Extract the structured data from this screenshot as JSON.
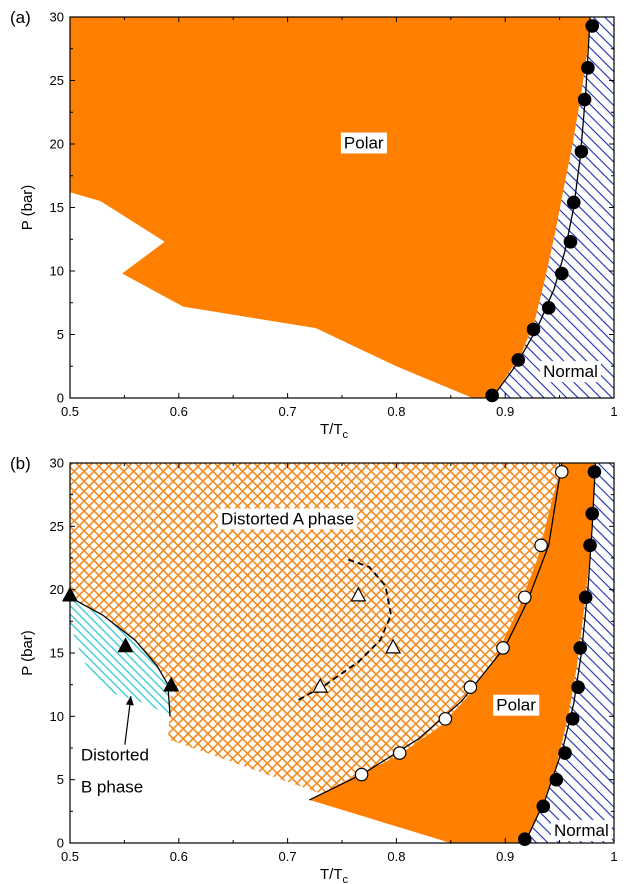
{
  "chart_data": [
    {
      "type": "scatter",
      "panel": "(a)",
      "xlabel": "T/T",
      "xlabel_sub": "c",
      "ylabel": "P (bar)",
      "xlim": [
        0.5,
        1.0
      ],
      "ylim": [
        0,
        30
      ],
      "xticks": [
        "0.5",
        "0.6",
        "0.7",
        "0.8",
        "0.9",
        "1"
      ],
      "yticks": [
        "0",
        "5",
        "10",
        "15",
        "20",
        "25",
        "30"
      ],
      "regions": [
        {
          "label": "Polar",
          "label_at": [
            0.77,
            20.0
          ],
          "style": "solid-orange",
          "polygon": [
            [
              0.5,
              30
            ],
            [
              0.978,
              30
            ],
            [
              0.975,
              27
            ],
            [
              0.97,
              24
            ],
            [
              0.962,
              20
            ],
            [
              0.955,
              17
            ],
            [
              0.946,
              13
            ],
            [
              0.937,
              9.5
            ],
            [
              0.927,
              6
            ],
            [
              0.915,
              3.5
            ],
            [
              0.888,
              0
            ],
            [
              0.87,
              0
            ],
            [
              0.8,
              2.5
            ],
            [
              0.726,
              5.5
            ],
            [
              0.604,
              7.2
            ],
            [
              0.548,
              9.8
            ],
            [
              0.587,
              12.3
            ],
            [
              0.528,
              15.5
            ],
            [
              0.5,
              16.2
            ]
          ]
        },
        {
          "label": "Normal",
          "label_at": [
            0.96,
            2.0
          ],
          "style": "blue-hatch",
          "polygon": [
            [
              0.978,
              30
            ],
            [
              1.0,
              30
            ],
            [
              1.0,
              0
            ],
            [
              0.888,
              0
            ],
            [
              0.915,
              3.5
            ],
            [
              0.927,
              6
            ],
            [
              0.937,
              9.5
            ],
            [
              0.946,
              13
            ],
            [
              0.955,
              17
            ],
            [
              0.962,
              20
            ],
            [
              0.97,
              24
            ],
            [
              0.975,
              27
            ]
          ]
        }
      ],
      "series": [
        {
          "marker": "filled-circle",
          "x": [
            0.888,
            0.912,
            0.926,
            0.94,
            0.952,
            0.96,
            0.963,
            0.97,
            0.973,
            0.976,
            0.98
          ],
          "y": [
            0.2,
            3.0,
            5.4,
            7.1,
            9.8,
            12.3,
            15.4,
            19.4,
            23.5,
            26.0,
            29.3
          ]
        }
      ],
      "curves": [
        {
          "style": "solid",
          "x": [
            0.888,
            0.91,
            0.93,
            0.945,
            0.955,
            0.963,
            0.969,
            0.974,
            0.978
          ],
          "y": [
            0,
            2.6,
            5.6,
            8.6,
            11.6,
            15.0,
            19.0,
            24.0,
            30
          ]
        }
      ]
    },
    {
      "type": "scatter",
      "panel": "(b)",
      "xlabel": "T/T",
      "xlabel_sub": "c",
      "ylabel": "P (bar)",
      "xlim": [
        0.5,
        1.0
      ],
      "ylim": [
        0,
        30
      ],
      "xticks": [
        "0.5",
        "0.6",
        "0.7",
        "0.8",
        "0.9",
        "1"
      ],
      "yticks": [
        "0",
        "5",
        "10",
        "15",
        "20",
        "25",
        "30"
      ],
      "regions": [
        {
          "label": "Distorted A phase",
          "label_at": [
            0.7,
            25.5
          ],
          "style": "orange-crosshatch",
          "polygon": [
            [
              0.5,
              30
            ],
            [
              0.952,
              30
            ],
            [
              0.94,
              26
            ],
            [
              0.93,
              22.5
            ],
            [
              0.912,
              18.5
            ],
            [
              0.89,
              14.5
            ],
            [
              0.865,
              11.5
            ],
            [
              0.84,
              9.2
            ],
            [
              0.8,
              6.8
            ],
            [
              0.76,
              5.2
            ],
            [
              0.72,
              3.4
            ],
            [
              0.84,
              0.7
            ],
            [
              0.845,
              0
            ],
            [
              0.845,
              0.4
            ],
            [
              0.59,
              8.2
            ],
            [
              0.593,
              12.3
            ],
            [
              0.57,
              14.5
            ],
            [
              0.545,
              17
            ],
            [
              0.5,
              19.3
            ]
          ]
        },
        {
          "label": "Polar",
          "label_at": [
            0.91,
            10.8
          ],
          "style": "solid-orange",
          "polygon": [
            [
              0.952,
              30
            ],
            [
              0.983,
              30
            ],
            [
              0.98,
              26
            ],
            [
              0.977,
              22
            ],
            [
              0.972,
              18
            ],
            [
              0.966,
              14
            ],
            [
              0.958,
              10
            ],
            [
              0.947,
              6
            ],
            [
              0.932,
              2.5
            ],
            [
              0.918,
              0
            ],
            [
              0.85,
              0
            ],
            [
              0.72,
              3.4
            ],
            [
              0.76,
              5.2
            ],
            [
              0.8,
              6.8
            ],
            [
              0.84,
              9.2
            ],
            [
              0.865,
              11.5
            ],
            [
              0.89,
              14.5
            ],
            [
              0.912,
              18.5
            ],
            [
              0.93,
              22.5
            ],
            [
              0.94,
              26
            ]
          ]
        },
        {
          "label": "Normal",
          "label_at": [
            0.97,
            0.9
          ],
          "style": "blue-hatch",
          "polygon": [
            [
              0.983,
              30
            ],
            [
              1.0,
              30
            ],
            [
              1.0,
              0
            ],
            [
              0.918,
              0
            ],
            [
              0.932,
              2.5
            ],
            [
              0.947,
              6
            ],
            [
              0.958,
              10
            ],
            [
              0.966,
              14
            ],
            [
              0.972,
              18
            ],
            [
              0.977,
              22
            ],
            [
              0.98,
              26
            ]
          ]
        },
        {
          "label": "Distorted\nB phase",
          "style": "cyan-hatch",
          "polygon": [
            [
              0.5,
              19.4
            ],
            [
              0.53,
              18.0
            ],
            [
              0.56,
              16.0
            ],
            [
              0.58,
              14.0
            ],
            [
              0.59,
              12.5
            ],
            [
              0.592,
              10.0
            ],
            [
              0.57,
              11.0
            ],
            [
              0.54,
              11.8
            ],
            [
              0.515,
              14.0
            ],
            [
              0.505,
              16.0
            ],
            [
              0.5,
              17.4
            ]
          ]
        }
      ],
      "series": [
        {
          "marker": "filled-circle",
          "x": [
            0.918,
            0.935,
            0.947,
            0.955,
            0.962,
            0.967,
            0.969,
            0.974,
            0.978,
            0.98,
            0.982
          ],
          "y": [
            0.3,
            2.9,
            5.0,
            7.1,
            9.8,
            12.3,
            15.4,
            19.4,
            23.5,
            26.0,
            29.3
          ]
        },
        {
          "marker": "open-circle",
          "x": [
            0.768,
            0.803,
            0.845,
            0.868,
            0.898,
            0.918,
            0.933,
            0.952
          ],
          "y": [
            5.4,
            7.1,
            9.8,
            12.3,
            15.4,
            19.4,
            23.5,
            29.3
          ]
        },
        {
          "marker": "filled-triangle",
          "x": [
            0.5,
            0.551,
            0.593
          ],
          "y": [
            19.5,
            15.5,
            12.4
          ]
        },
        {
          "marker": "open-triangle",
          "x": [
            0.73,
            0.765,
            0.797
          ],
          "y": [
            12.3,
            19.5,
            15.4
          ]
        }
      ],
      "curves": [
        {
          "style": "solid",
          "x": [
            0.72,
            0.77,
            0.82,
            0.86,
            0.9,
            0.92,
            0.94,
            0.952
          ],
          "y": [
            3.4,
            5.5,
            8.2,
            11.2,
            15.5,
            19.0,
            23.5,
            30
          ]
        },
        {
          "style": "solid",
          "x": [
            0.918,
            0.937,
            0.953,
            0.963,
            0.97,
            0.976,
            0.98,
            0.983
          ],
          "y": [
            0,
            3.5,
            7.5,
            11.0,
            15.0,
            20.0,
            25.0,
            30
          ]
        },
        {
          "style": "solid",
          "x": [
            0.5,
            0.53,
            0.56,
            0.58,
            0.59,
            0.592
          ],
          "y": [
            19.4,
            18.0,
            16.0,
            14.0,
            12.5,
            10.0
          ]
        },
        {
          "style": "dashed",
          "x": [
            0.71,
            0.735,
            0.765,
            0.785,
            0.795,
            0.79,
            0.775,
            0.755
          ],
          "y": [
            11.3,
            12.5,
            14.3,
            16.0,
            18.0,
            20.3,
            21.8,
            22.4
          ]
        }
      ],
      "annotations": [
        {
          "text": "Distorted",
          "at": [
            0.51,
            6.5
          ],
          "arrow_to": [
            0.556,
            11.6
          ]
        },
        {
          "text": "B phase",
          "at": [
            0.51,
            4.0
          ]
        }
      ]
    }
  ]
}
